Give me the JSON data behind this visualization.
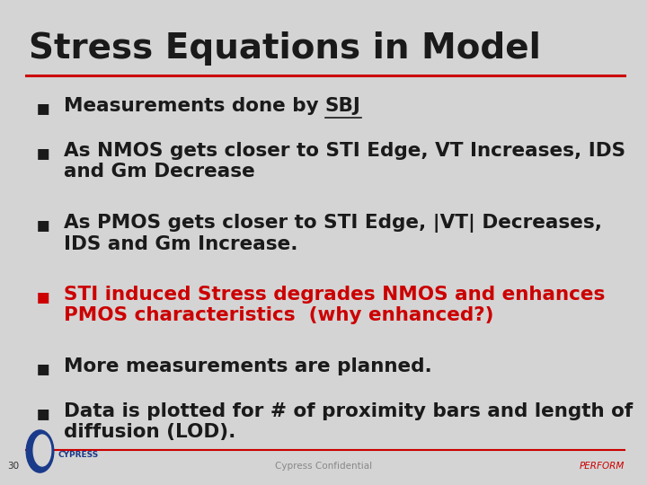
{
  "title": "Stress Equations in Model",
  "title_fontsize": 28,
  "title_color": "#1a1a1a",
  "bg_color": "#d4d4d4",
  "red_color": "#cc0000",
  "footer_text": "Cypress Confidential",
  "footer_perform": "PERFORM",
  "footer_page": "30",
  "bullet_items": [
    {
      "text": "Measurements done by SBJ",
      "color": "#1a1a1a",
      "underline_word": "SBJ"
    },
    {
      "text": "As NMOS gets closer to STI Edge, VT Increases, IDS\nand Gm Decrease",
      "color": "#1a1a1a",
      "underline_word": ""
    },
    {
      "text": "As PMOS gets closer to STI Edge, |VT| Decreases,\nIDS and Gm Increase.",
      "color": "#1a1a1a",
      "underline_word": ""
    },
    {
      "text": "STI induced Stress degrades NMOS and enhances\nPMOS characteristics  (why enhanced?)",
      "color": "#cc0000",
      "underline_word": ""
    },
    {
      "text": "More measurements are planned.",
      "color": "#1a1a1a",
      "underline_word": ""
    },
    {
      "text": "Data is plotted for # of proximity bars and length of\ndiffusion (LOD).",
      "color": "#1a1a1a",
      "underline_word": ""
    }
  ],
  "bullet_fontsize": 15.5,
  "footer_fontsize": 7.5,
  "text_color_light": "#888888",
  "text_color_dark": "#333333",
  "blue_color": "#1a3a8a"
}
